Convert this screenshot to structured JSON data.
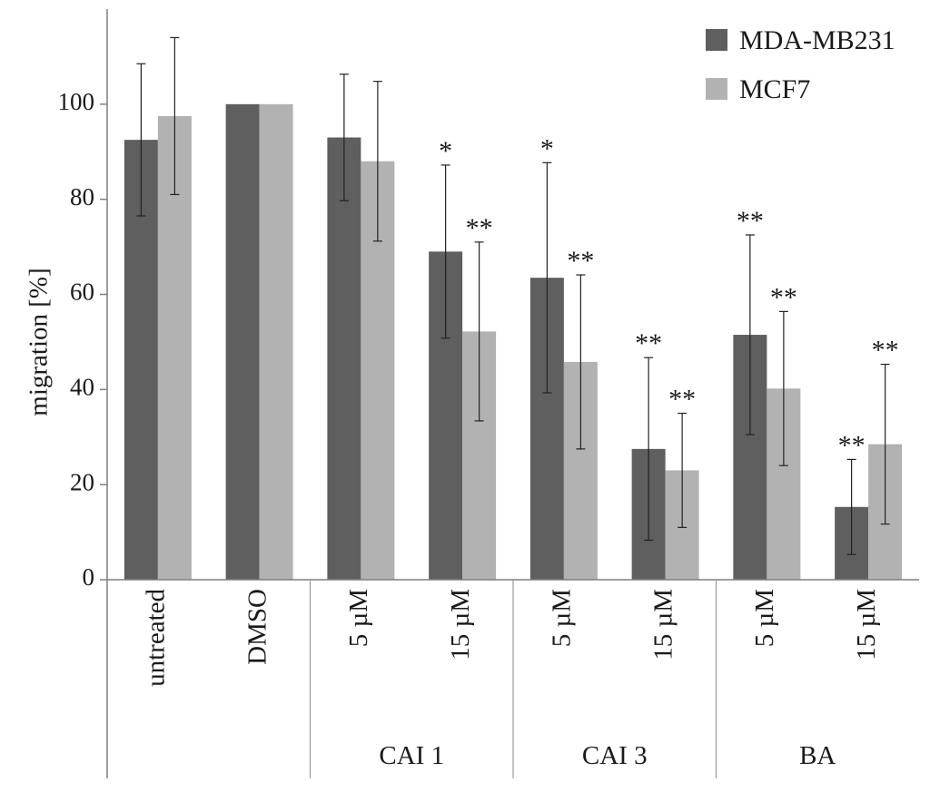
{
  "chart_data": {
    "type": "bar",
    "title": "",
    "xlabel": "",
    "ylabel": "migration [%]",
    "ylim": [
      0,
      120
    ],
    "yticks": [
      0,
      20,
      40,
      60,
      80,
      100
    ],
    "grid": false,
    "legend_position": "top-right",
    "categories": [
      "untreated",
      "DMSO",
      "5 µM",
      "15 µM",
      "5 µM",
      "15 µM",
      "5 µM",
      "15 µM"
    ],
    "groups": [
      {
        "label": "",
        "categories": [
          0,
          1
        ]
      },
      {
        "label": "CAI 1",
        "categories": [
          2,
          3
        ]
      },
      {
        "label": "CAI 3",
        "categories": [
          4,
          5
        ]
      },
      {
        "label": "BA",
        "categories": [
          6,
          7
        ]
      }
    ],
    "series": [
      {
        "name": "MDA-MB231",
        "color": "#5f5f5f",
        "values": [
          92.5,
          100,
          93,
          69,
          63.5,
          27.5,
          51.5,
          15.3
        ],
        "errors": [
          16,
          0,
          13.3,
          18.2,
          24.2,
          19.2,
          21,
          10
        ],
        "significance": [
          "",
          "",
          "",
          "*",
          "*",
          "**",
          "**",
          "**"
        ]
      },
      {
        "name": "MCF7",
        "color": "#b2b2b2",
        "values": [
          97.5,
          100,
          88,
          52.2,
          45.8,
          23,
          40.2,
          28.5
        ],
        "errors": [
          16.5,
          0,
          16.8,
          18.8,
          18.3,
          12,
          16.2,
          16.8
        ],
        "significance": [
          "",
          "",
          "",
          "**",
          "**",
          "**",
          "**",
          "**"
        ]
      }
    ]
  }
}
